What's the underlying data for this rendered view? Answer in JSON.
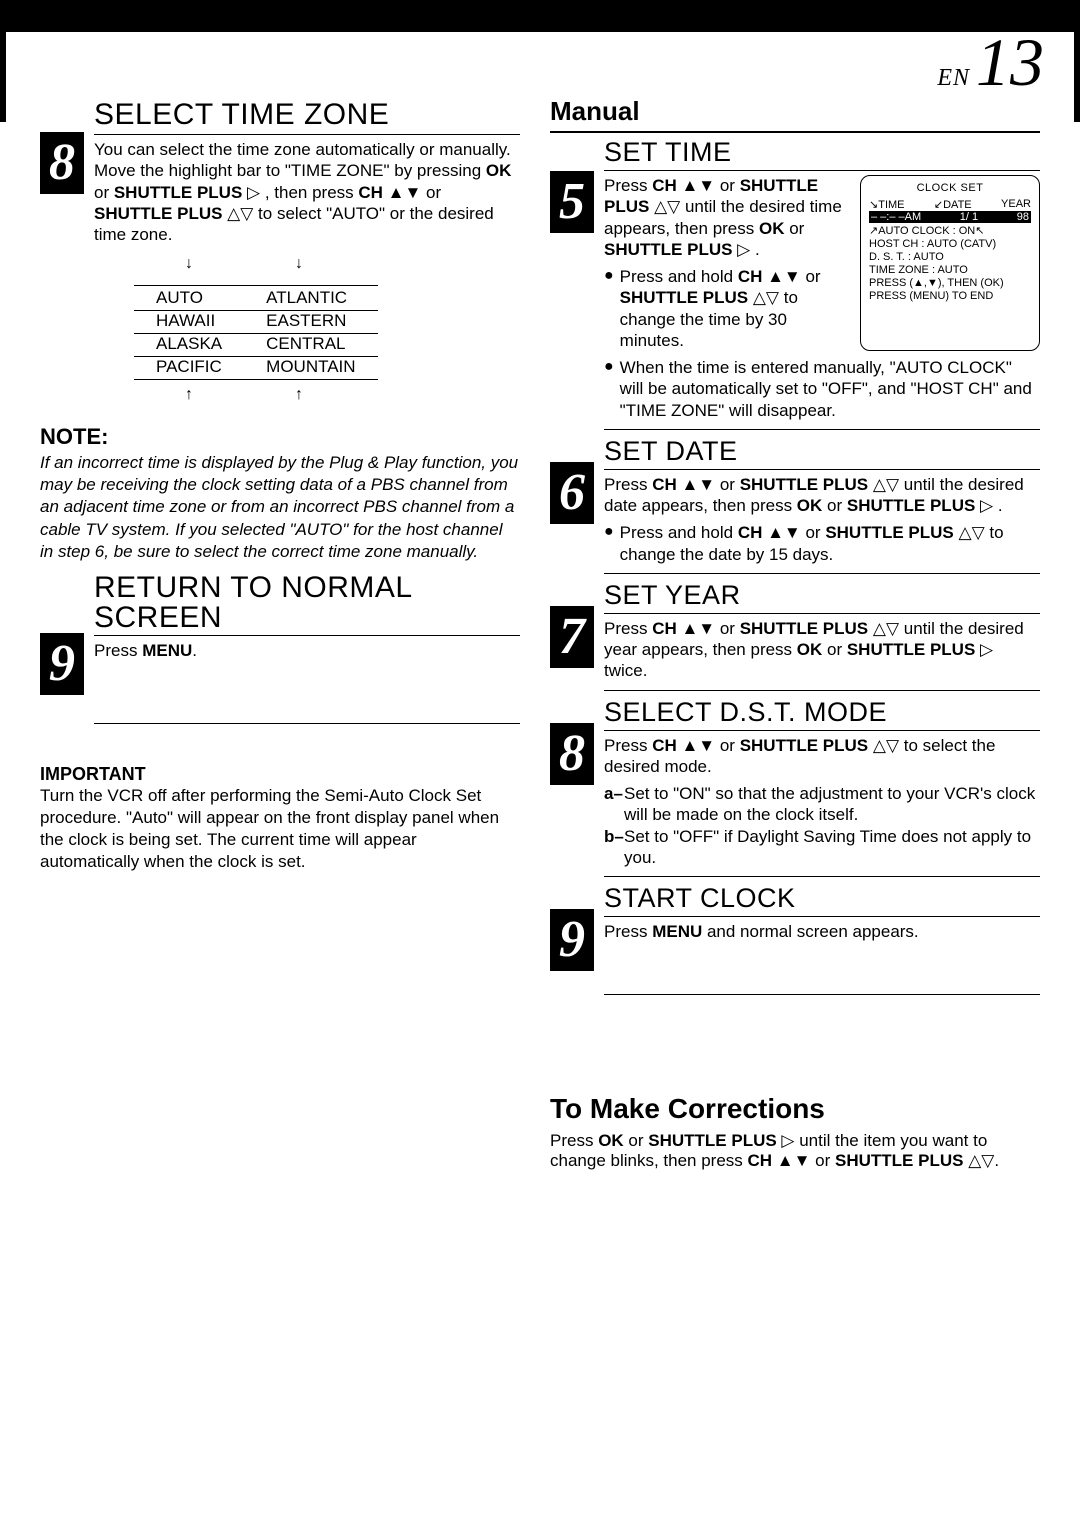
{
  "page": {
    "en_label": "EN",
    "number": "13"
  },
  "left": {
    "step8": {
      "num": "8",
      "title": "SELECT TIME ZONE",
      "body_html": "You can select the time zone automatically or manually. Move the highlight bar to \"TIME ZONE\" by pressing <b>OK</b> or <b>SHUTTLE PLUS</b> ▷ , then press <b>CH</b> ▲▼ or <b>SHUTTLE PLUS</b> △▽ to select \"AUTO\" or the desired time zone.",
      "timezones_left": [
        "AUTO",
        "HAWAII",
        "ALASKA",
        "PACIFIC"
      ],
      "timezones_right": [
        "ATLANTIC",
        "EASTERN",
        "CENTRAL",
        "MOUNTAIN"
      ]
    },
    "note": {
      "heading": "NOTE:",
      "text": "If an incorrect time is displayed by the Plug & Play function, you may be receiving the clock setting data of a PBS channel from an adjacent time zone or from an incorrect PBS channel from a cable TV system. If you selected \"AUTO\" for the host channel in step 6, be sure to select the correct time zone manually."
    },
    "step9": {
      "num": "9",
      "title": "RETURN TO NORMAL SCREEN",
      "body_html": "Press <b>MENU</b>."
    },
    "important": {
      "heading": "IMPORTANT",
      "text": "Turn the VCR off after performing the Semi-Auto Clock Set procedure. \"Auto\" will appear on the front display panel when the clock is being set. The current time will appear automatically when the clock is set."
    }
  },
  "right": {
    "manual_heading": "Manual",
    "step5": {
      "num": "5",
      "title": "SET TIME",
      "body_html": "Press <b>CH</b> ▲▼ or <b>SHUTTLE PLUS</b> △▽ until the desired time appears, then press <b>OK</b> or <b>SHUTTLE PLUS</b> ▷ .",
      "bullet1_html": "Press and hold <b>CH</b> ▲▼ or <b>SHUTTLE PLUS</b> △▽ to change the time by 30 minutes.",
      "bullet2_html": "When the time is entered manually, \"AUTO CLOCK\" will be automatically set to \"OFF\", and \"HOST CH\" and \"TIME ZONE\" will disappear."
    },
    "clock_panel": {
      "title": "CLOCK SET",
      "hdr_time": "TIME",
      "hdr_date": "DATE",
      "hdr_year": "YEAR",
      "row_time": "– –:– –AM",
      "row_date": "1/  1",
      "row_year": "98",
      "line_auto": "AUTO CLOCK : ON",
      "line_host": "HOST CH       : AUTO  (CATV)",
      "line_dst": "D. S. T.            : AUTO",
      "line_tz": "TIME ZONE    : AUTO",
      "line_press1": "PRESS (▲,▼),  THEN (OK)",
      "line_press2": "PRESS (MENU) TO END"
    },
    "step6": {
      "num": "6",
      "title": "SET DATE",
      "body_html": "Press <b>CH</b> ▲▼ or <b>SHUTTLE PLUS</b> △▽ until the desired date appears, then press <b>OK</b> or <b>SHUTTLE PLUS</b> ▷ .",
      "bullet_html": "Press and hold <b>CH</b> ▲▼ or <b>SHUTTLE PLUS</b> △▽ to change the date by 15 days."
    },
    "step7": {
      "num": "7",
      "title": "SET YEAR",
      "body_html": "Press <b>CH</b> ▲▼ or <b>SHUTTLE PLUS</b> △▽ until the desired year appears, then press <b>OK</b> or <b>SHUTTLE PLUS</b> ▷ twice."
    },
    "step8": {
      "num": "8",
      "title": "SELECT D.S.T. MODE",
      "body_html": "Press <b>CH</b> ▲▼ or <b>SHUTTLE PLUS</b> △▽ to select the desired mode.",
      "option_a": "Set to \"ON\" so that the adjustment to your VCR's clock will be made  on the clock itself.",
      "option_b": "Set to \"OFF\" if Daylight Saving Time does not apply to you."
    },
    "step9": {
      "num": "9",
      "title": "START CLOCK",
      "body_html": "Press <b>MENU</b> and normal screen appears."
    },
    "corrections": {
      "heading": "To Make Corrections",
      "text_html": "Press <b>OK</b> or <b>SHUTTLE PLUS</b> ▷ until the item you want to change blinks, then press <b>CH</b> ▲▼ or <b>SHUTTLE PLUS</b> △▽."
    }
  }
}
